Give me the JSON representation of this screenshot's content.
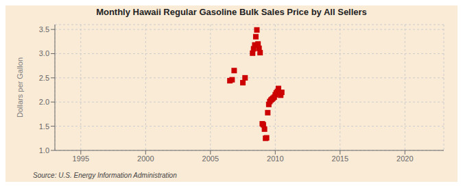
{
  "chart_data": {
    "type": "scatter",
    "title": "Monthly Hawaii Regular Gasoline Bulk Sales Price by All Sellers",
    "y_label": "Dollars per Gallon",
    "annotation": "Source: U.S. Energy Information Administration",
    "x": [
      2006.5,
      2006.67,
      2006.83,
      2007.5,
      2007.67,
      2008.25,
      2008.33,
      2008.42,
      2008.5,
      2008.58,
      2008.67,
      2008.75,
      2008.83,
      2009.0,
      2009.08,
      2009.17,
      2009.25,
      2009.33,
      2009.42,
      2009.5,
      2009.58,
      2009.67,
      2009.75,
      2009.83,
      2009.92,
      2010.0,
      2010.08,
      2010.17,
      2010.25,
      2010.33,
      2010.42,
      2010.5
    ],
    "values": [
      2.44,
      2.46,
      2.65,
      2.4,
      2.5,
      3.01,
      3.1,
      3.18,
      3.35,
      3.49,
      3.2,
      3.11,
      3.02,
      1.55,
      1.53,
      1.44,
      1.25,
      1.26,
      1.78,
      1.95,
      2.01,
      2.04,
      2.06,
      2.08,
      2.1,
      2.15,
      2.19,
      2.22,
      2.28,
      2.18,
      2.14,
      2.2
    ],
    "color": "#cc0000",
    "marker": "square",
    "xlim": [
      1993,
      2023
    ],
    "ylim": [
      1.0,
      3.6
    ],
    "xticks": [
      1995,
      2000,
      2005,
      2010,
      2015,
      2020
    ],
    "yticks": [
      {
        "value": 1.0,
        "label": "1.0"
      },
      1.5,
      {
        "value": 2.0,
        "label": "2.0"
      },
      2.5,
      {
        "value": 3.0,
        "label": "3.0"
      },
      3.5
    ],
    "grid": true
  }
}
